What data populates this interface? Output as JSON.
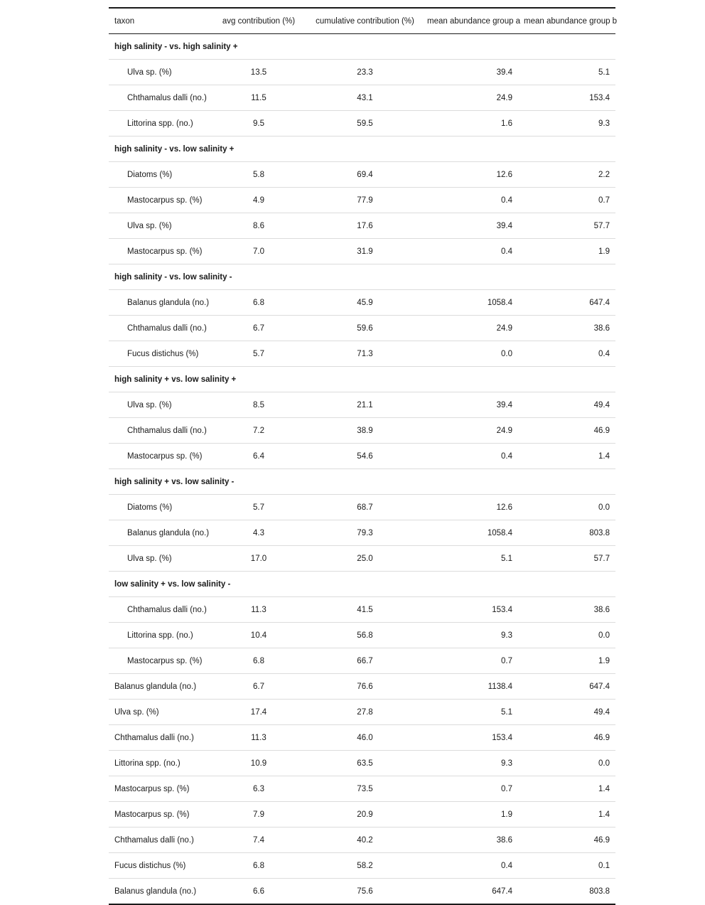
{
  "table": {
    "headers": {
      "taxon": "taxon",
      "avg": "avg contribution (%)",
      "cum": "cumulative contribution (%)",
      "mean_a": "mean abundance group a",
      "mean_b": "mean abundance group b"
    },
    "groups": [
      {
        "label": "high salinity - vs. high salinity +",
        "rows": [
          {
            "taxon": "Ulva sp. (%)",
            "avg": "13.5",
            "cum": "23.3",
            "mean_a": "39.4",
            "mean_b": "5.1"
          },
          {
            "taxon": "Chthamalus dalli (no.)",
            "avg": "11.5",
            "cum": "43.1",
            "mean_a": "24.9",
            "mean_b": "153.4"
          },
          {
            "taxon": "Littorina spp. (no.)",
            "avg": "9.5",
            "cum": "59.5",
            "mean_a": "1.6",
            "mean_b": "9.3"
          }
        ]
      },
      {
        "label": "high salinity - vs. low salinity +",
        "rows": [
          {
            "taxon": "Diatoms (%)",
            "avg": "5.8",
            "cum": "69.4",
            "mean_a": "12.6",
            "mean_b": "2.2"
          },
          {
            "taxon": "Mastocarpus sp. (%)",
            "avg": "4.9",
            "cum": "77.9",
            "mean_a": "0.4",
            "mean_b": "0.7"
          },
          {
            "taxon": "Ulva sp. (%)",
            "avg": "8.6",
            "cum": "17.6",
            "mean_a": "39.4",
            "mean_b": "57.7"
          },
          {
            "taxon": "Mastocarpus sp. (%)",
            "avg": "7.0",
            "cum": "31.9",
            "mean_a": "0.4",
            "mean_b": "1.9"
          }
        ]
      },
      {
        "label": "high salinity - vs. low salinity -",
        "rows": [
          {
            "taxon": "Balanus glandula (no.)",
            "avg": "6.8",
            "cum": "45.9",
            "mean_a": "1058.4",
            "mean_b": "647.4"
          },
          {
            "taxon": "Chthamalus dalli (no.)",
            "avg": "6.7",
            "cum": "59.6",
            "mean_a": "24.9",
            "mean_b": "38.6"
          },
          {
            "taxon": "Fucus distichus (%)",
            "avg": "5.7",
            "cum": "71.3",
            "mean_a": "0.0",
            "mean_b": "0.4"
          }
        ]
      },
      {
        "label": "high salinity + vs. low salinity +",
        "rows": [
          {
            "taxon": "Ulva sp. (%)",
            "avg": "8.5",
            "cum": "21.1",
            "mean_a": "39.4",
            "mean_b": "49.4"
          },
          {
            "taxon": "Chthamalus dalli (no.)",
            "avg": "7.2",
            "cum": "38.9",
            "mean_a": "24.9",
            "mean_b": "46.9"
          },
          {
            "taxon": "Mastocarpus sp. (%)",
            "avg": "6.4",
            "cum": "54.6",
            "mean_a": "0.4",
            "mean_b": "1.4"
          }
        ]
      },
      {
        "label": "high salinity + vs. low salinity -",
        "rows": [
          {
            "taxon": "Diatoms (%)",
            "avg": "5.7",
            "cum": "68.7",
            "mean_a": "12.6",
            "mean_b": "0.0"
          },
          {
            "taxon": "Balanus glandula (no.)",
            "avg": "4.3",
            "cum": "79.3",
            "mean_a": "1058.4",
            "mean_b": "803.8"
          },
          {
            "taxon": "Ulva sp. (%)",
            "avg": "17.0",
            "cum": "25.0",
            "mean_a": "5.1",
            "mean_b": "57.7"
          }
        ]
      },
      {
        "label": "low salinity + vs. low salinity -",
        "rows": [
          {
            "taxon": "Chthamalus dalli (no.)",
            "avg": "11.3",
            "cum": "41.5",
            "mean_a": "153.4",
            "mean_b": "38.6"
          },
          {
            "taxon": "Littorina spp. (no.)",
            "avg": "10.4",
            "cum": "56.8",
            "mean_a": "9.3",
            "mean_b": "0.0"
          },
          {
            "taxon": "Mastocarpus sp. (%)",
            "avg": "6.8",
            "cum": "66.7",
            "mean_a": "0.7",
            "mean_b": "1.9"
          }
        ]
      }
    ],
    "ungrouped_rows": [
      {
        "taxon": "Balanus glandula (no.)",
        "avg": "6.7",
        "cum": "76.6",
        "mean_a": "1138.4",
        "mean_b": "647.4"
      },
      {
        "taxon": "Ulva sp. (%)",
        "avg": "17.4",
        "cum": "27.8",
        "mean_a": "5.1",
        "mean_b": "49.4"
      },
      {
        "taxon": "Chthamalus dalli (no.)",
        "avg": "11.3",
        "cum": "46.0",
        "mean_a": "153.4",
        "mean_b": "46.9"
      },
      {
        "taxon": "Littorina spp. (no.)",
        "avg": "10.9",
        "cum": "63.5",
        "mean_a": "9.3",
        "mean_b": "0.0"
      },
      {
        "taxon": "Mastocarpus sp. (%)",
        "avg": "6.3",
        "cum": "73.5",
        "mean_a": "0.7",
        "mean_b": "1.4"
      },
      {
        "taxon": "Mastocarpus sp. (%)",
        "avg": "7.9",
        "cum": "20.9",
        "mean_a": "1.9",
        "mean_b": "1.4"
      },
      {
        "taxon": "Chthamalus dalli (no.)",
        "avg": "7.4",
        "cum": "40.2",
        "mean_a": "38.6",
        "mean_b": "46.9"
      },
      {
        "taxon": "Fucus distichus (%)",
        "avg": "6.8",
        "cum": "58.2",
        "mean_a": "0.4",
        "mean_b": "0.1"
      },
      {
        "taxon": "Balanus glandula (no.)",
        "avg": "6.6",
        "cum": "75.6",
        "mean_a": "647.4",
        "mean_b": "803.8"
      }
    ]
  }
}
